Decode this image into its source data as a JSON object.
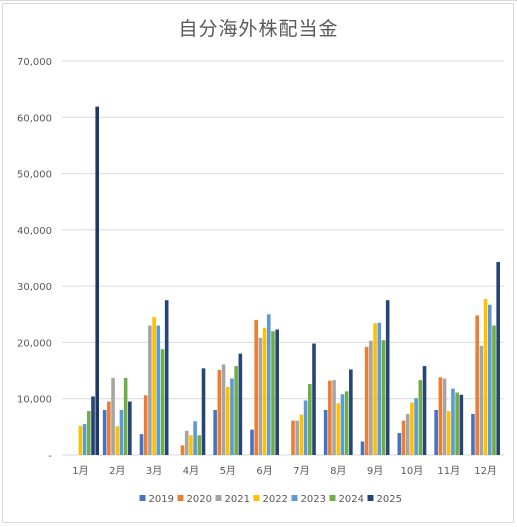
{
  "chart_data": {
    "type": "bar",
    "title": "自分海外株配当金",
    "xlabel": "",
    "ylabel": "",
    "ylim": [
      0,
      70000
    ],
    "yticks": [
      0,
      10000,
      20000,
      30000,
      40000,
      50000,
      60000,
      70000
    ],
    "ytick_labels": [
      "-",
      "10,000",
      "20,000",
      "30,000",
      "40,000",
      "50,000",
      "60,000",
      "70,000"
    ],
    "categories": [
      "1月",
      "2月",
      "3月",
      "4月",
      "5月",
      "6月",
      "7月",
      "8月",
      "9月",
      "10月",
      "11月",
      "12月"
    ],
    "grid": true,
    "legend_position": "bottom",
    "series": [
      {
        "name": "2019",
        "color": "#4472C4",
        "values": [
          0,
          8000,
          3700,
          0,
          8000,
          4500,
          0,
          8000,
          2400,
          3900,
          8000,
          7300
        ]
      },
      {
        "name": "2020",
        "color": "#ED7D31",
        "values": [
          0,
          9500,
          10600,
          1700,
          15100,
          24000,
          6100,
          13200,
          19200,
          6100,
          13800,
          24800
        ]
      },
      {
        "name": "2021",
        "color": "#A5A5A5",
        "values": [
          0,
          13700,
          23000,
          4300,
          16100,
          20800,
          6100,
          13300,
          20300,
          7300,
          13600,
          19400
        ]
      },
      {
        "name": "2022",
        "color": "#FFC000",
        "values": [
          5200,
          5100,
          24500,
          3500,
          12100,
          22600,
          7200,
          9200,
          23400,
          9300,
          7800,
          27700
        ]
      },
      {
        "name": "2023",
        "color": "#5B9BD5",
        "values": [
          5500,
          8000,
          23000,
          6000,
          13600,
          25000,
          9700,
          10800,
          23500,
          10100,
          11800,
          26700
        ]
      },
      {
        "name": "2024",
        "color": "#70AD47",
        "values": [
          7800,
          13700,
          18800,
          3500,
          15800,
          22000,
          12600,
          11300,
          20400,
          13300,
          11100,
          23000
        ]
      },
      {
        "name": "2025",
        "color": "#264478",
        "values": [
          10400,
          9500,
          27500,
          15400,
          18000,
          22300,
          19800,
          15200,
          27500,
          15800,
          10700,
          34300
        ]
      },
      {
        "name": "",
        "color": "#1F3864",
        "values": [
          61900,
          0,
          0,
          0,
          0,
          0,
          0,
          0,
          0,
          0,
          0,
          0
        ]
      }
    ]
  }
}
